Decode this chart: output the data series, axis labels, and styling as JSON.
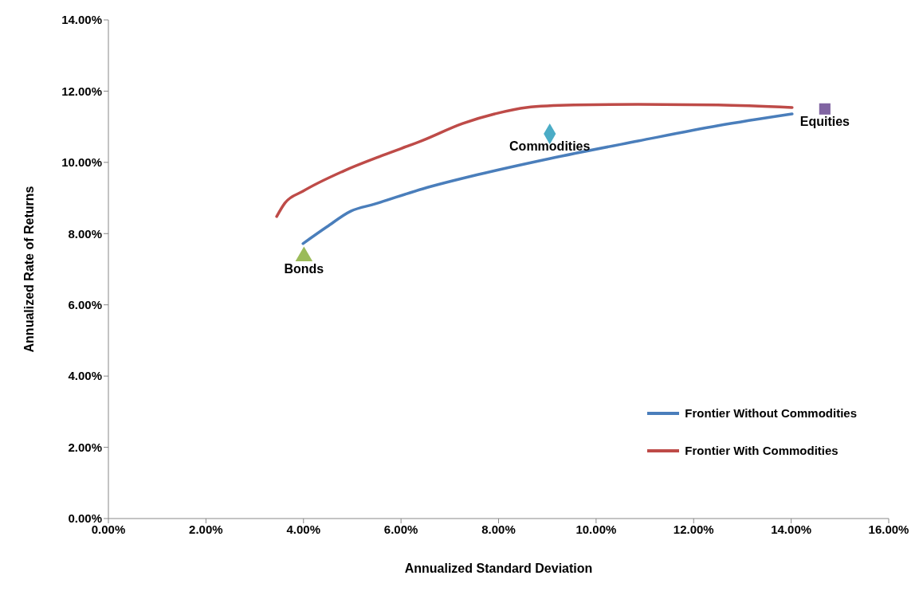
{
  "chart_data": {
    "type": "line",
    "xlabel": "Annualized Standard  Deviation",
    "ylabel": "Annualized Rate of Returns",
    "xlim": [
      0,
      16
    ],
    "ylim": [
      0,
      14
    ],
    "xticks": [
      {
        "value": 0,
        "label": "0.00%"
      },
      {
        "value": 2,
        "label": "2.00%"
      },
      {
        "value": 4,
        "label": "4.00%"
      },
      {
        "value": 6,
        "label": "6.00%"
      },
      {
        "value": 8,
        "label": "8.00%"
      },
      {
        "value": 10,
        "label": "10.00%"
      },
      {
        "value": 12,
        "label": "12.00%"
      },
      {
        "value": 14,
        "label": "14.00%"
      },
      {
        "value": 16,
        "label": "16.00%"
      }
    ],
    "yticks": [
      {
        "value": 0,
        "label": "0.00%"
      },
      {
        "value": 2,
        "label": "2.00%"
      },
      {
        "value": 4,
        "label": "4.00%"
      },
      {
        "value": 6,
        "label": "6.00%"
      },
      {
        "value": 8,
        "label": "8.00%"
      },
      {
        "value": 10,
        "label": "10.00%"
      },
      {
        "value": 12,
        "label": "12.00%"
      },
      {
        "value": 14,
        "label": "14.00%"
      }
    ],
    "grid": false,
    "legend": "bottom right",
    "line_style": "solid",
    "series": [
      {
        "name": "Frontier Without Commodities",
        "marker": "none",
        "color": "#4a7ebb",
        "x": [
          3.99,
          4.48,
          4.97,
          5.46,
          6.45,
          7.59,
          9.06,
          10.86,
          12.5,
          14.02
        ],
        "values": [
          7.72,
          8.19,
          8.63,
          8.83,
          9.26,
          9.66,
          10.11,
          10.6,
          11.03,
          11.36
        ]
      },
      {
        "name": "Frontier With Commodities",
        "marker": "none",
        "color": "#be4b48",
        "x": [
          3.45,
          3.62,
          3.99,
          4.81,
          5.63,
          6.45,
          7.26,
          7.92,
          8.57,
          9.55,
          10.86,
          12.5,
          14.02
        ],
        "values": [
          8.48,
          8.86,
          9.19,
          9.75,
          10.2,
          10.62,
          11.09,
          11.36,
          11.54,
          11.61,
          11.63,
          11.61,
          11.54
        ]
      },
      {
        "type": "scatter",
        "marker": "triangle",
        "color": "#9bbb59",
        "x": [
          4.01
        ],
        "values": [
          7.36
        ]
      },
      {
        "type": "scatter",
        "marker": "diamond",
        "color": "#4bacc6",
        "x": [
          9.05
        ],
        "values": [
          10.8
        ]
      },
      {
        "type": "scatter",
        "marker": "square",
        "color": "#8064a2",
        "x": [
          14.69
        ],
        "values": [
          11.5
        ]
      }
    ],
    "annotations": [
      {
        "text": "Bonds",
        "x": 4.01,
        "y": 7.36
      },
      {
        "text": "Commodities",
        "x": 9.05,
        "y": 10.8
      },
      {
        "text": "Equities",
        "x": 14.69,
        "y": 11.5
      }
    ]
  }
}
